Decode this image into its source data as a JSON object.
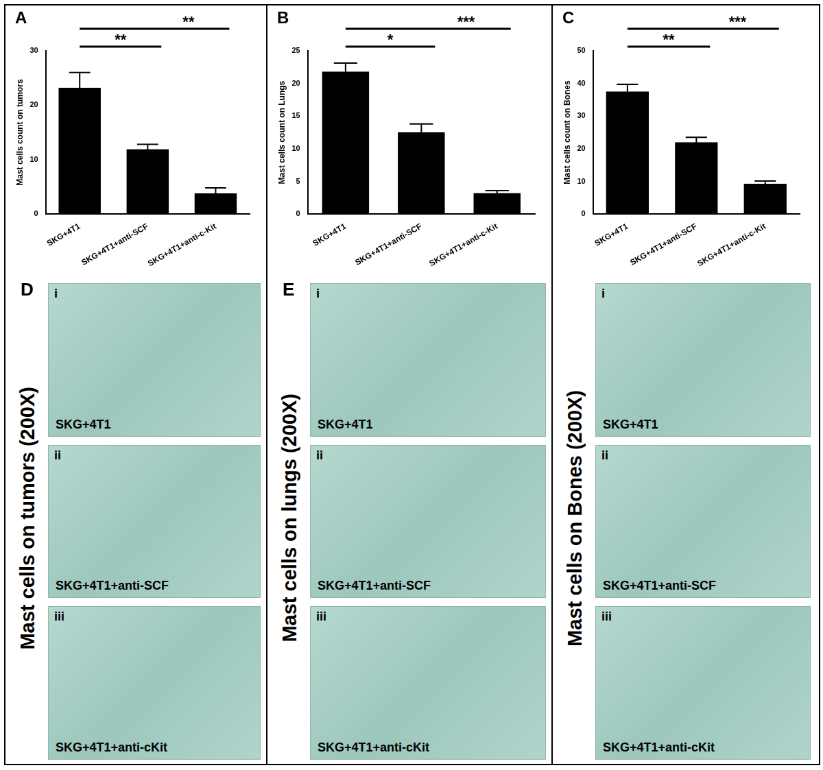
{
  "chart_data": [
    {
      "panel": "A",
      "type": "bar",
      "y_label": "Mast cells count on tumors",
      "categories": [
        "SKG+4T1",
        "SKG+4T1+anti-SCF",
        "SKG+4T1+anti-c-Kit"
      ],
      "values": [
        23.2,
        11.9,
        3.8
      ],
      "errors": [
        2.8,
        0.9,
        1.0
      ],
      "color": "#000000",
      "ylim": [
        0,
        30
      ],
      "yticks": [
        0,
        10,
        20,
        30
      ],
      "grid": false,
      "significance": [
        {
          "from": "SKG+4T1",
          "to": "SKG+4T1+anti-SCF",
          "label": "**"
        },
        {
          "from": "SKG+4T1",
          "to": "SKG+4T1+anti-c-Kit",
          "label": "**"
        }
      ]
    },
    {
      "panel": "B",
      "type": "bar",
      "y_label": "Mast cells count on Lungs",
      "categories": [
        "SKG+4T1",
        "SKG+4T1+anti-SCF",
        "SKG+4T1+anti-c-Kit"
      ],
      "values": [
        21.8,
        12.5,
        3.2
      ],
      "errors": [
        1.3,
        1.3,
        0.4
      ],
      "color": "#000000",
      "ylim": [
        0,
        25
      ],
      "yticks": [
        0,
        5,
        10,
        15,
        20,
        25
      ],
      "grid": false,
      "significance": [
        {
          "from": "SKG+4T1",
          "to": "SKG+4T1+anti-SCF",
          "label": "*"
        },
        {
          "from": "SKG+4T1",
          "to": "SKG+4T1+anti-c-Kit",
          "label": "***"
        }
      ]
    },
    {
      "panel": "C",
      "type": "bar",
      "y_label": "Mast cells count on Bones",
      "categories": [
        "SKG+4T1",
        "SKG+4T1+anti-SCF",
        "SKG+4T1+anti-c-Kit"
      ],
      "values": [
        37.5,
        22.0,
        9.3
      ],
      "errors": [
        2.2,
        1.5,
        0.8
      ],
      "color": "#000000",
      "ylim": [
        0,
        50
      ],
      "yticks": [
        0,
        10,
        20,
        30,
        40,
        50
      ],
      "grid": false,
      "significance": [
        {
          "from": "SKG+4T1",
          "to": "SKG+4T1+anti-SCF",
          "label": "**"
        },
        {
          "from": "SKG+4T1",
          "to": "SKG+4T1+anti-c-Kit",
          "label": "***"
        }
      ]
    }
  ],
  "image_panels": [
    {
      "panel": "D",
      "title": "Mast cells on tumors (200X)",
      "images": [
        {
          "index": "i",
          "label": "SKG+4T1"
        },
        {
          "index": "ii",
          "label": "SKG+4T1+anti-SCF"
        },
        {
          "index": "iii",
          "label": "SKG+4T1+anti-cKit"
        }
      ]
    },
    {
      "panel": "E",
      "title": "Mast cells on lungs (200X)",
      "images": [
        {
          "index": "i",
          "label": "SKG+4T1"
        },
        {
          "index": "ii",
          "label": "SKG+4T1+anti-SCF"
        },
        {
          "index": "iii",
          "label": "SKG+4T1+anti-cKit"
        }
      ]
    },
    {
      "title": "Mast cells on Bones (200X)",
      "images": [
        {
          "index": "i",
          "label": "SKG+4T1"
        },
        {
          "index": "ii",
          "label": "SKG+4T1+anti-SCF"
        },
        {
          "index": "iii",
          "label": "SKG+4T1+anti-cKit"
        }
      ]
    }
  ]
}
